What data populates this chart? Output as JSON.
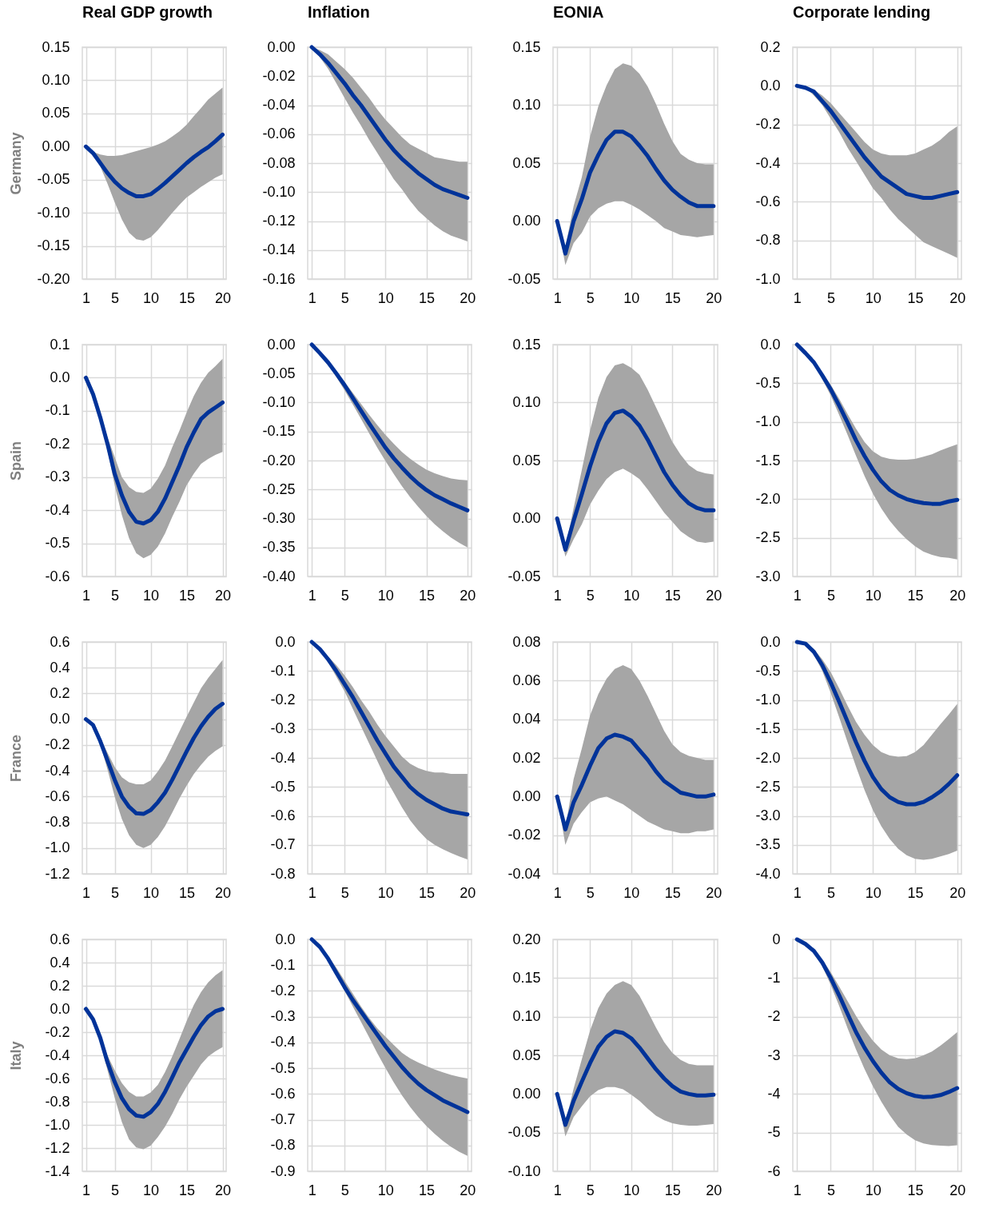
{
  "chart_data": [
    {
      "type": "line",
      "title": "Real GDP growth",
      "ylabel": "Germany",
      "x": [
        1,
        2,
        3,
        4,
        5,
        6,
        7,
        8,
        9,
        10,
        11,
        12,
        13,
        14,
        15,
        16,
        17,
        18,
        19,
        20
      ],
      "xlim": [
        0.5,
        20.5
      ],
      "xticks": [
        1,
        5,
        10,
        15,
        20
      ],
      "ylim": [
        -0.2,
        0.15
      ],
      "yticks": [
        {
          "value": -0.2,
          "label": "-0.20"
        },
        -0.15,
        {
          "value": -0.1,
          "label": "-0.10"
        },
        -0.05,
        {
          "value": 0,
          "label": "0.00"
        },
        0.05,
        {
          "value": 0.1,
          "label": "0.10"
        },
        0.15
      ],
      "grid": true,
      "series": [
        {
          "color": "#003399",
          "values": [
            0,
            -0.01,
            -0.025,
            -0.04,
            -0.053,
            -0.063,
            -0.07,
            -0.075,
            -0.075,
            -0.072,
            -0.064,
            -0.055,
            -0.045,
            -0.035,
            -0.025,
            -0.016,
            -0.008,
            -0.001,
            0.008,
            0.018
          ],
          "lower": [
            0,
            -0.012,
            -0.03,
            -0.056,
            -0.084,
            -0.11,
            -0.13,
            -0.14,
            -0.142,
            -0.137,
            -0.126,
            -0.113,
            -0.1,
            -0.088,
            -0.077,
            -0.069,
            -0.061,
            -0.054,
            -0.047,
            -0.042
          ],
          "upper": [
            0,
            -0.008,
            -0.012,
            -0.014,
            -0.014,
            -0.013,
            -0.01,
            -0.007,
            -0.004,
            -0.001,
            0.003,
            0.008,
            0.015,
            0.023,
            0.033,
            0.046,
            0.058,
            0.071,
            0.08,
            0.089
          ]
        }
      ]
    },
    {
      "type": "line",
      "title": "Inflation",
      "x": [
        1,
        2,
        3,
        4,
        5,
        6,
        7,
        8,
        9,
        10,
        11,
        12,
        13,
        14,
        15,
        16,
        17,
        18,
        19,
        20
      ],
      "xlim": [
        0.5,
        20.5
      ],
      "xticks": [
        1,
        5,
        10,
        15,
        20
      ],
      "ylim": [
        -0.16,
        0
      ],
      "yticks": [
        -0.16,
        -0.14,
        -0.12,
        {
          "value": -0.1,
          "label": "-0.10"
        },
        -0.08,
        -0.06,
        -0.04,
        -0.02,
        {
          "value": 0,
          "label": "0.00"
        }
      ],
      "grid": true,
      "series": [
        {
          "color": "#003399",
          "values": [
            0,
            -0.005,
            -0.011,
            -0.018,
            -0.025,
            -0.033,
            -0.04,
            -0.048,
            -0.056,
            -0.064,
            -0.071,
            -0.077,
            -0.082,
            -0.087,
            -0.091,
            -0.095,
            -0.098,
            -0.1,
            -0.102,
            -0.104
          ],
          "lower": [
            0,
            -0.007,
            -0.015,
            -0.025,
            -0.035,
            -0.045,
            -0.054,
            -0.064,
            -0.073,
            -0.082,
            -0.091,
            -0.098,
            -0.106,
            -0.113,
            -0.118,
            -0.123,
            -0.127,
            -0.13,
            -0.132,
            -0.134
          ],
          "upper": [
            0,
            -0.002,
            -0.005,
            -0.01,
            -0.015,
            -0.021,
            -0.028,
            -0.035,
            -0.043,
            -0.05,
            -0.056,
            -0.062,
            -0.067,
            -0.07,
            -0.073,
            -0.076,
            -0.077,
            -0.078,
            -0.079,
            -0.079
          ]
        }
      ]
    },
    {
      "type": "line",
      "title": "EONIA",
      "x": [
        1,
        2,
        3,
        4,
        5,
        6,
        7,
        8,
        9,
        10,
        11,
        12,
        13,
        14,
        15,
        16,
        17,
        18,
        19,
        20
      ],
      "xlim": [
        0.5,
        20.5
      ],
      "xticks": [
        1,
        5,
        10,
        15,
        20
      ],
      "ylim": [
        -0.05,
        0.15
      ],
      "yticks": [
        -0.05,
        {
          "value": 0,
          "label": "0.00"
        },
        0.05,
        {
          "value": 0.1,
          "label": "0.10"
        },
        0.15
      ],
      "grid": true,
      "series": [
        {
          "color": "#003399",
          "values": [
            0,
            -0.028,
            0,
            0.019,
            0.042,
            0.057,
            0.07,
            0.077,
            0.077,
            0.073,
            0.065,
            0.056,
            0.045,
            0.035,
            0.027,
            0.021,
            0.016,
            0.013,
            0.013,
            0.013
          ],
          "lower": [
            0,
            -0.038,
            -0.019,
            -0.01,
            0.004,
            0.011,
            0.015,
            0.017,
            0.017,
            0.014,
            0.01,
            0.005,
            0,
            -0.006,
            -0.009,
            -0.012,
            -0.013,
            -0.014,
            -0.013,
            -0.012
          ],
          "upper": [
            0,
            -0.022,
            0.013,
            0.038,
            0.073,
            0.099,
            0.117,
            0.131,
            0.136,
            0.134,
            0.127,
            0.116,
            0.101,
            0.084,
            0.069,
            0.058,
            0.053,
            0.05,
            0.049,
            0.049
          ]
        }
      ]
    },
    {
      "type": "line",
      "title": "Corporate lending",
      "x": [
        1,
        2,
        3,
        4,
        5,
        6,
        7,
        8,
        9,
        10,
        11,
        12,
        13,
        14,
        15,
        16,
        17,
        18,
        19,
        20
      ],
      "xlim": [
        0.5,
        20.5
      ],
      "xticks": [
        1,
        5,
        10,
        15,
        20
      ],
      "ylim": [
        -1,
        0.2
      ],
      "yticks": [
        {
          "value": -1,
          "label": "-1.0"
        },
        -0.8,
        -0.6,
        -0.4,
        -0.2,
        {
          "value": 0,
          "label": "0.0"
        },
        0.2
      ],
      "grid": true,
      "series": [
        {
          "color": "#003399",
          "values": [
            0,
            -0.01,
            -0.03,
            -0.08,
            -0.13,
            -0.19,
            -0.25,
            -0.31,
            -0.37,
            -0.42,
            -0.47,
            -0.5,
            -0.53,
            -0.56,
            -0.57,
            -0.58,
            -0.58,
            -0.57,
            -0.56,
            -0.55
          ],
          "lower": [
            0,
            -0.01,
            -0.05,
            -0.1,
            -0.17,
            -0.24,
            -0.32,
            -0.39,
            -0.46,
            -0.53,
            -0.58,
            -0.64,
            -0.69,
            -0.73,
            -0.77,
            -0.81,
            -0.83,
            -0.85,
            -0.87,
            -0.89
          ],
          "upper": [
            0,
            0,
            -0.02,
            -0.05,
            -0.09,
            -0.14,
            -0.19,
            -0.24,
            -0.29,
            -0.33,
            -0.35,
            -0.36,
            -0.36,
            -0.36,
            -0.35,
            -0.33,
            -0.31,
            -0.28,
            -0.24,
            -0.21
          ]
        }
      ]
    },
    {
      "type": "line",
      "ylabel": "Spain",
      "x": [
        1,
        2,
        3,
        4,
        5,
        6,
        7,
        8,
        9,
        10,
        11,
        12,
        13,
        14,
        15,
        16,
        17,
        18,
        19,
        20
      ],
      "xlim": [
        0.5,
        20.5
      ],
      "xticks": [
        1,
        5,
        10,
        15,
        20
      ],
      "ylim": [
        -0.6,
        0.1
      ],
      "yticks": [
        -0.6,
        -0.5,
        -0.4,
        -0.3,
        -0.2,
        -0.1,
        {
          "value": 0,
          "label": "0.0"
        },
        0.1
      ],
      "grid": true,
      "series": [
        {
          "color": "#003399",
          "values": [
            0,
            -0.05,
            -0.12,
            -0.2,
            -0.29,
            -0.355,
            -0.405,
            -0.435,
            -0.44,
            -0.43,
            -0.405,
            -0.365,
            -0.315,
            -0.265,
            -0.21,
            -0.165,
            -0.125,
            -0.105,
            -0.09,
            -0.075
          ],
          "lower": [
            0,
            -0.05,
            -0.125,
            -0.22,
            -0.325,
            -0.415,
            -0.485,
            -0.53,
            -0.545,
            -0.535,
            -0.51,
            -0.47,
            -0.42,
            -0.375,
            -0.325,
            -0.29,
            -0.26,
            -0.245,
            -0.233,
            -0.224
          ],
          "upper": [
            0,
            -0.045,
            -0.11,
            -0.18,
            -0.24,
            -0.3,
            -0.33,
            -0.345,
            -0.348,
            -0.335,
            -0.305,
            -0.265,
            -0.21,
            -0.16,
            -0.105,
            -0.055,
            -0.015,
            0.015,
            0.035,
            0.057
          ]
        }
      ]
    },
    {
      "type": "line",
      "x": [
        1,
        2,
        3,
        4,
        5,
        6,
        7,
        8,
        9,
        10,
        11,
        12,
        13,
        14,
        15,
        16,
        17,
        18,
        19,
        20
      ],
      "xlim": [
        0.5,
        20.5
      ],
      "xticks": [
        1,
        5,
        10,
        15,
        20
      ],
      "ylim": [
        -0.4,
        0
      ],
      "yticks": [
        {
          "value": -0.4,
          "label": "-0.40"
        },
        -0.35,
        {
          "value": -0.3,
          "label": "-0.30"
        },
        -0.25,
        {
          "value": -0.2,
          "label": "-0.20"
        },
        -0.15,
        {
          "value": -0.1,
          "label": "-0.10"
        },
        -0.05,
        {
          "value": 0,
          "label": "0.00"
        }
      ],
      "grid": true,
      "series": [
        {
          "color": "#003399",
          "values": [
            0,
            -0.015,
            -0.031,
            -0.05,
            -0.07,
            -0.092,
            -0.114,
            -0.136,
            -0.157,
            -0.178,
            -0.196,
            -0.212,
            -0.227,
            -0.24,
            -0.251,
            -0.26,
            -0.267,
            -0.274,
            -0.28,
            -0.286
          ],
          "lower": [
            0,
            -0.016,
            -0.034,
            -0.056,
            -0.079,
            -0.103,
            -0.128,
            -0.153,
            -0.178,
            -0.201,
            -0.223,
            -0.244,
            -0.263,
            -0.28,
            -0.296,
            -0.31,
            -0.322,
            -0.333,
            -0.342,
            -0.35
          ],
          "upper": [
            0,
            -0.014,
            -0.029,
            -0.046,
            -0.064,
            -0.083,
            -0.102,
            -0.121,
            -0.139,
            -0.156,
            -0.171,
            -0.185,
            -0.197,
            -0.207,
            -0.216,
            -0.222,
            -0.227,
            -0.231,
            -0.233,
            -0.234
          ]
        }
      ]
    },
    {
      "type": "line",
      "x": [
        1,
        2,
        3,
        4,
        5,
        6,
        7,
        8,
        9,
        10,
        11,
        12,
        13,
        14,
        15,
        16,
        17,
        18,
        19,
        20
      ],
      "xlim": [
        0.5,
        20.5
      ],
      "xticks": [
        1,
        5,
        10,
        15,
        20
      ],
      "ylim": [
        -0.05,
        0.15
      ],
      "yticks": [
        -0.05,
        {
          "value": 0,
          "label": "0.00"
        },
        0.05,
        {
          "value": 0.1,
          "label": "0.10"
        },
        0.15
      ],
      "grid": true,
      "series": [
        {
          "color": "#003399",
          "values": [
            0,
            -0.027,
            -0.002,
            0.021,
            0.045,
            0.066,
            0.082,
            0.091,
            0.093,
            0.088,
            0.08,
            0.068,
            0.054,
            0.04,
            0.029,
            0.02,
            0.013,
            0.009,
            0.007,
            0.007
          ],
          "lower": [
            0,
            -0.033,
            -0.018,
            -0.005,
            0.012,
            0.024,
            0.034,
            0.04,
            0.043,
            0.039,
            0.034,
            0.025,
            0.015,
            0.005,
            -0.003,
            -0.011,
            -0.016,
            -0.02,
            -0.021,
            -0.02
          ],
          "upper": [
            0,
            -0.025,
            0.009,
            0.042,
            0.076,
            0.104,
            0.122,
            0.132,
            0.134,
            0.13,
            0.124,
            0.111,
            0.096,
            0.081,
            0.066,
            0.055,
            0.046,
            0.041,
            0.039,
            0.038
          ]
        }
      ]
    },
    {
      "type": "line",
      "x": [
        1,
        2,
        3,
        4,
        5,
        6,
        7,
        8,
        9,
        10,
        11,
        12,
        13,
        14,
        15,
        16,
        17,
        18,
        19,
        20
      ],
      "xlim": [
        0.5,
        20.5
      ],
      "xticks": [
        1,
        5,
        10,
        15,
        20
      ],
      "ylim": [
        -3,
        0
      ],
      "yticks": [
        {
          "value": -3,
          "label": "-3.0"
        },
        -2.5,
        {
          "value": -2,
          "label": "-2.0"
        },
        -1.5,
        {
          "value": -1,
          "label": "-1.0"
        },
        -0.5,
        {
          "value": 0,
          "label": "0.0"
        }
      ],
      "grid": true,
      "series": [
        {
          "color": "#003399",
          "values": [
            0,
            -0.11,
            -0.23,
            -0.4,
            -0.58,
            -0.79,
            -1.01,
            -1.24,
            -1.44,
            -1.62,
            -1.77,
            -1.88,
            -1.95,
            -2,
            -2.03,
            -2.05,
            -2.06,
            -2.06,
            -2.03,
            -2.01
          ],
          "lower": [
            0,
            -0.12,
            -0.25,
            -0.45,
            -0.66,
            -0.91,
            -1.17,
            -1.44,
            -1.7,
            -1.93,
            -2.12,
            -2.28,
            -2.41,
            -2.52,
            -2.61,
            -2.68,
            -2.72,
            -2.75,
            -2.76,
            -2.78
          ],
          "upper": [
            0,
            -0.1,
            -0.21,
            -0.36,
            -0.52,
            -0.7,
            -0.9,
            -1.09,
            -1.26,
            -1.38,
            -1.45,
            -1.48,
            -1.49,
            -1.49,
            -1.48,
            -1.45,
            -1.42,
            -1.37,
            -1.33,
            -1.29
          ]
        }
      ]
    },
    {
      "type": "line",
      "ylabel": "France",
      "x": [
        1,
        2,
        3,
        4,
        5,
        6,
        7,
        8,
        9,
        10,
        11,
        12,
        13,
        14,
        15,
        16,
        17,
        18,
        19,
        20
      ],
      "xlim": [
        0.5,
        20.5
      ],
      "xticks": [
        1,
        5,
        10,
        15,
        20
      ],
      "ylim": [
        -1.2,
        0.6
      ],
      "yticks": [
        -1.2,
        {
          "value": -1,
          "label": "-1.0"
        },
        -0.8,
        -0.6,
        -0.4,
        -0.2,
        {
          "value": 0,
          "label": "0.0"
        },
        0.2,
        0.4,
        0.6
      ],
      "grid": true,
      "series": [
        {
          "color": "#003399",
          "values": [
            0,
            -0.045,
            -0.17,
            -0.32,
            -0.47,
            -0.6,
            -0.68,
            -0.73,
            -0.735,
            -0.705,
            -0.645,
            -0.57,
            -0.47,
            -0.36,
            -0.25,
            -0.145,
            -0.055,
            0.02,
            0.08,
            0.12
          ],
          "lower": [
            0,
            -0.05,
            -0.195,
            -0.39,
            -0.6,
            -0.775,
            -0.9,
            -0.975,
            -1,
            -0.975,
            -0.915,
            -0.83,
            -0.725,
            -0.615,
            -0.515,
            -0.425,
            -0.355,
            -0.29,
            -0.245,
            -0.21
          ],
          "upper": [
            0,
            -0.04,
            -0.145,
            -0.26,
            -0.37,
            -0.45,
            -0.49,
            -0.505,
            -0.505,
            -0.475,
            -0.405,
            -0.32,
            -0.21,
            -0.095,
            0.02,
            0.13,
            0.24,
            0.32,
            0.39,
            0.46
          ]
        }
      ]
    },
    {
      "type": "line",
      "x": [
        1,
        2,
        3,
        4,
        5,
        6,
        7,
        8,
        9,
        10,
        11,
        12,
        13,
        14,
        15,
        16,
        17,
        18,
        19,
        20
      ],
      "xlim": [
        0.5,
        20.5
      ],
      "xticks": [
        1,
        5,
        10,
        15,
        20
      ],
      "ylim": [
        -0.8,
        0
      ],
      "yticks": [
        -0.8,
        -0.7,
        -0.6,
        -0.5,
        -0.4,
        -0.3,
        -0.2,
        -0.1,
        {
          "value": 0,
          "label": "0.0"
        }
      ],
      "grid": true,
      "series": [
        {
          "color": "#003399",
          "values": [
            0,
            -0.025,
            -0.06,
            -0.1,
            -0.145,
            -0.19,
            -0.24,
            -0.29,
            -0.34,
            -0.385,
            -0.43,
            -0.465,
            -0.5,
            -0.525,
            -0.545,
            -0.56,
            -0.575,
            -0.585,
            -0.59,
            -0.595
          ],
          "lower": [
            0,
            -0.028,
            -0.07,
            -0.12,
            -0.17,
            -0.23,
            -0.29,
            -0.35,
            -0.41,
            -0.47,
            -0.52,
            -0.57,
            -0.615,
            -0.65,
            -0.68,
            -0.7,
            -0.715,
            -0.728,
            -0.74,
            -0.75
          ],
          "upper": [
            0,
            -0.022,
            -0.05,
            -0.08,
            -0.115,
            -0.155,
            -0.2,
            -0.24,
            -0.285,
            -0.325,
            -0.36,
            -0.395,
            -0.42,
            -0.435,
            -0.445,
            -0.45,
            -0.45,
            -0.455,
            -0.455,
            -0.455
          ]
        }
      ]
    },
    {
      "type": "line",
      "x": [
        1,
        2,
        3,
        4,
        5,
        6,
        7,
        8,
        9,
        10,
        11,
        12,
        13,
        14,
        15,
        16,
        17,
        18,
        19,
        20
      ],
      "xlim": [
        0.5,
        20.5
      ],
      "xticks": [
        1,
        5,
        10,
        15,
        20
      ],
      "ylim": [
        -0.04,
        0.08
      ],
      "yticks": [
        -0.04,
        -0.02,
        {
          "value": 0,
          "label": "0.00"
        },
        0.02,
        0.04,
        0.06,
        0.08
      ],
      "grid": true,
      "series": [
        {
          "color": "#003399",
          "values": [
            0,
            -0.017,
            -0.003,
            0.006,
            0.016,
            0.025,
            0.03,
            0.032,
            0.031,
            0.029,
            0.024,
            0.019,
            0.013,
            0.008,
            0.005,
            0.002,
            0.001,
            0,
            0,
            0.001
          ],
          "lower": [
            0,
            -0.025,
            -0.014,
            -0.008,
            -0.003,
            -0.001,
            0,
            -0.002,
            -0.004,
            -0.007,
            -0.01,
            -0.013,
            -0.015,
            -0.017,
            -0.018,
            -0.019,
            -0.019,
            -0.018,
            -0.018,
            -0.017
          ],
          "upper": [
            0,
            -0.016,
            0.009,
            0.025,
            0.042,
            0.053,
            0.061,
            0.066,
            0.068,
            0.066,
            0.06,
            0.052,
            0.043,
            0.034,
            0.027,
            0.023,
            0.021,
            0.02,
            0.019,
            0.019
          ]
        }
      ]
    },
    {
      "type": "line",
      "x": [
        1,
        2,
        3,
        4,
        5,
        6,
        7,
        8,
        9,
        10,
        11,
        12,
        13,
        14,
        15,
        16,
        17,
        18,
        19,
        20
      ],
      "xlim": [
        0.5,
        20.5
      ],
      "xticks": [
        1,
        5,
        10,
        15,
        20
      ],
      "ylim": [
        -4,
        0
      ],
      "yticks": [
        {
          "value": -4,
          "label": "-4.0"
        },
        -3.5,
        {
          "value": -3,
          "label": "-3.0"
        },
        -2.5,
        {
          "value": -2,
          "label": "-2.0"
        },
        -1.5,
        {
          "value": -1,
          "label": "-1.0"
        },
        -0.5,
        {
          "value": 0,
          "label": "0.0"
        }
      ],
      "grid": true,
      "series": [
        {
          "color": "#003399",
          "values": [
            0,
            -0.03,
            -0.17,
            -0.4,
            -0.7,
            -1.03,
            -1.38,
            -1.73,
            -2.05,
            -2.33,
            -2.54,
            -2.68,
            -2.76,
            -2.8,
            -2.8,
            -2.76,
            -2.68,
            -2.58,
            -2.45,
            -2.3
          ],
          "lower": [
            0,
            -0.04,
            -0.22,
            -0.5,
            -0.88,
            -1.3,
            -1.73,
            -2.15,
            -2.55,
            -2.9,
            -3.18,
            -3.4,
            -3.57,
            -3.68,
            -3.74,
            -3.76,
            -3.74,
            -3.7,
            -3.66,
            -3.6
          ],
          "upper": [
            0,
            -0.02,
            -0.12,
            -0.3,
            -0.52,
            -0.8,
            -1.1,
            -1.38,
            -1.6,
            -1.78,
            -1.9,
            -1.96,
            -1.98,
            -1.97,
            -1.9,
            -1.78,
            -1.6,
            -1.42,
            -1.25,
            -1.07
          ]
        }
      ]
    },
    {
      "type": "line",
      "ylabel": "Italy",
      "x": [
        1,
        2,
        3,
        4,
        5,
        6,
        7,
        8,
        9,
        10,
        11,
        12,
        13,
        14,
        15,
        16,
        17,
        18,
        19,
        20
      ],
      "xlim": [
        0.5,
        20.5
      ],
      "xticks": [
        1,
        5,
        10,
        15,
        20
      ],
      "ylim": [
        -1.4,
        0.6
      ],
      "yticks": [
        -1.4,
        -1.2,
        {
          "value": -1,
          "label": "-1.0"
        },
        -0.8,
        -0.6,
        -0.4,
        -0.2,
        {
          "value": 0,
          "label": "0.0"
        },
        0.2,
        0.4,
        0.6
      ],
      "grid": true,
      "series": [
        {
          "color": "#003399",
          "values": [
            0,
            -0.09,
            -0.25,
            -0.46,
            -0.63,
            -0.77,
            -0.865,
            -0.92,
            -0.93,
            -0.89,
            -0.82,
            -0.715,
            -0.59,
            -0.46,
            -0.35,
            -0.24,
            -0.14,
            -0.065,
            -0.02,
            0
          ],
          "lower": [
            0,
            -0.095,
            -0.285,
            -0.53,
            -0.765,
            -0.975,
            -1.125,
            -1.195,
            -1.21,
            -1.18,
            -1.105,
            -1.015,
            -0.905,
            -0.78,
            -0.67,
            -0.575,
            -0.48,
            -0.41,
            -0.365,
            -0.33
          ],
          "upper": [
            0,
            -0.085,
            -0.23,
            -0.4,
            -0.53,
            -0.64,
            -0.715,
            -0.755,
            -0.755,
            -0.72,
            -0.655,
            -0.545,
            -0.41,
            -0.26,
            -0.105,
            0.035,
            0.145,
            0.23,
            0.29,
            0.335
          ]
        }
      ]
    },
    {
      "type": "line",
      "x": [
        1,
        2,
        3,
        4,
        5,
        6,
        7,
        8,
        9,
        10,
        11,
        12,
        13,
        14,
        15,
        16,
        17,
        18,
        19,
        20
      ],
      "xlim": [
        0.5,
        20.5
      ],
      "xticks": [
        1,
        5,
        10,
        15,
        20
      ],
      "ylim": [
        -0.9,
        0
      ],
      "yticks": [
        -0.9,
        -0.8,
        -0.7,
        -0.6,
        -0.5,
        -0.4,
        -0.3,
        -0.2,
        -0.1,
        {
          "value": 0,
          "label": "0.0"
        }
      ],
      "grid": true,
      "series": [
        {
          "color": "#003399",
          "values": [
            0,
            -0.03,
            -0.075,
            -0.13,
            -0.185,
            -0.235,
            -0.28,
            -0.325,
            -0.37,
            -0.415,
            -0.455,
            -0.495,
            -0.53,
            -0.56,
            -0.585,
            -0.605,
            -0.625,
            -0.64,
            -0.655,
            -0.67
          ],
          "lower": [
            0,
            -0.032,
            -0.08,
            -0.14,
            -0.2,
            -0.26,
            -0.32,
            -0.38,
            -0.442,
            -0.5,
            -0.555,
            -0.605,
            -0.65,
            -0.69,
            -0.725,
            -0.755,
            -0.782,
            -0.805,
            -0.825,
            -0.84
          ],
          "upper": [
            0,
            -0.028,
            -0.065,
            -0.11,
            -0.16,
            -0.21,
            -0.26,
            -0.305,
            -0.345,
            -0.378,
            -0.41,
            -0.44,
            -0.462,
            -0.478,
            -0.492,
            -0.505,
            -0.516,
            -0.526,
            -0.534,
            -0.54
          ]
        }
      ]
    },
    {
      "type": "line",
      "x": [
        1,
        2,
        3,
        4,
        5,
        6,
        7,
        8,
        9,
        10,
        11,
        12,
        13,
        14,
        15,
        16,
        17,
        18,
        19,
        20
      ],
      "xlim": [
        0.5,
        20.5
      ],
      "xticks": [
        1,
        5,
        10,
        15,
        20
      ],
      "ylim": [
        -0.1,
        0.2
      ],
      "yticks": [
        {
          "value": -0.1,
          "label": "-0.10"
        },
        -0.05,
        {
          "value": 0,
          "label": "0.00"
        },
        0.05,
        {
          "value": 0.1,
          "label": "0.10"
        },
        0.15,
        {
          "value": 0.2,
          "label": "0.20"
        }
      ],
      "grid": true,
      "series": [
        {
          "color": "#003399",
          "values": [
            0,
            -0.04,
            -0.009,
            0.016,
            0.04,
            0.061,
            0.074,
            0.081,
            0.079,
            0.072,
            0.06,
            0.046,
            0.032,
            0.02,
            0.01,
            0.003,
            0,
            -0.002,
            -0.002,
            -0.001
          ],
          "lower": [
            0,
            -0.055,
            -0.03,
            -0.016,
            -0.003,
            0.005,
            0.009,
            0.009,
            0.006,
            -0.001,
            -0.009,
            -0.019,
            -0.028,
            -0.034,
            -0.038,
            -0.04,
            -0.041,
            -0.041,
            -0.04,
            -0.039
          ],
          "upper": [
            0,
            -0.038,
            0.007,
            0.045,
            0.082,
            0.111,
            0.13,
            0.141,
            0.146,
            0.141,
            0.127,
            0.107,
            0.086,
            0.067,
            0.053,
            0.044,
            0.039,
            0.037,
            0.037,
            0.037
          ]
        }
      ]
    },
    {
      "type": "line",
      "x": [
        1,
        2,
        3,
        4,
        5,
        6,
        7,
        8,
        9,
        10,
        11,
        12,
        13,
        14,
        15,
        16,
        17,
        18,
        19,
        20
      ],
      "xlim": [
        0.5,
        20.5
      ],
      "xticks": [
        1,
        5,
        10,
        15,
        20
      ],
      "ylim": [
        -6,
        0
      ],
      "yticks": [
        -6,
        -5,
        -4,
        -3,
        -2,
        -1,
        0
      ],
      "grid": true,
      "series": [
        {
          "color": "#003399",
          "values": [
            0,
            -0.12,
            -0.3,
            -0.6,
            -1,
            -1.45,
            -1.93,
            -2.4,
            -2.8,
            -3.15,
            -3.45,
            -3.7,
            -3.87,
            -3.98,
            -4.05,
            -4.08,
            -4.07,
            -4.03,
            -3.95,
            -3.85
          ],
          "lower": [
            0,
            -0.14,
            -0.35,
            -0.7,
            -1.18,
            -1.72,
            -2.3,
            -2.85,
            -3.35,
            -3.8,
            -4.2,
            -4.55,
            -4.85,
            -5.05,
            -5.2,
            -5.28,
            -5.32,
            -5.34,
            -5.35,
            -5.33
          ],
          "upper": [
            0,
            -0.1,
            -0.27,
            -0.52,
            -0.85,
            -1.22,
            -1.6,
            -1.98,
            -2.33,
            -2.62,
            -2.85,
            -3,
            -3.08,
            -3.1,
            -3.08,
            -3,
            -2.9,
            -2.75,
            -2.58,
            -2.4
          ]
        }
      ]
    }
  ]
}
